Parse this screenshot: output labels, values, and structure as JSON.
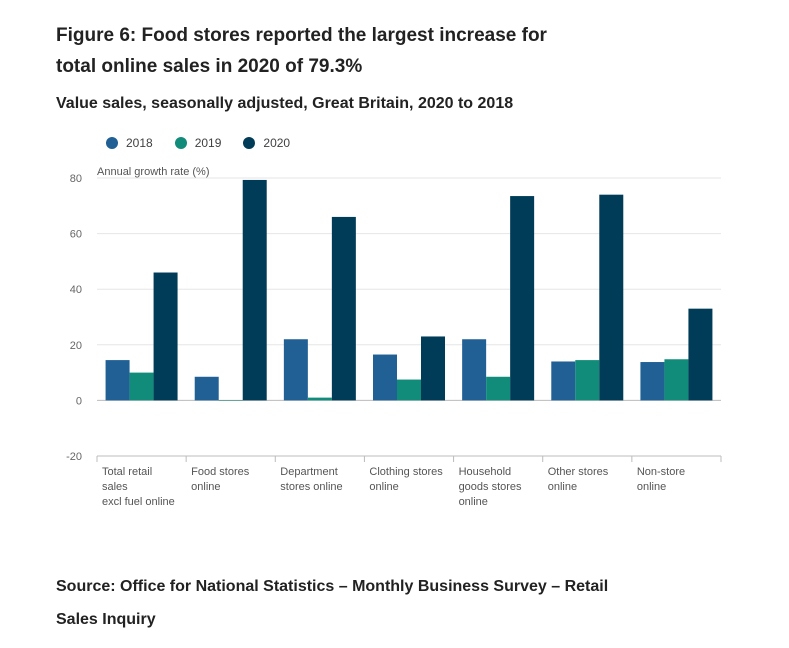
{
  "figure": {
    "title": "Figure 6: Food stores reported the largest increase for total online sales in 2020 of 79.3%",
    "subtitle": "Value sales, seasonally adjusted, Great Britain, 2020 to 2018",
    "source": "Source: Office for National Statistics – Monthly Business Survey – Retail Sales Inquiry"
  },
  "chart_data": {
    "type": "bar",
    "ylabel": "Annual growth rate (%)",
    "ylim": [
      -20,
      80
    ],
    "yticks": [
      80,
      60,
      40,
      20,
      0,
      -20
    ],
    "grid": true,
    "legend_position": "top-left",
    "categories": [
      [
        "Total retail",
        "sales",
        "excl fuel online"
      ],
      [
        "Food stores",
        "online"
      ],
      [
        "Department",
        "stores online"
      ],
      [
        "Clothing stores",
        "online"
      ],
      [
        "Household",
        "goods stores",
        "online"
      ],
      [
        "Other stores",
        "online"
      ],
      [
        "Non-store",
        "online"
      ]
    ],
    "series": [
      {
        "name": "2018",
        "color": "#206095",
        "values": [
          14.5,
          8.5,
          22.0,
          16.5,
          22.0,
          14.0,
          13.8
        ]
      },
      {
        "name": "2019",
        "color": "#118c7b",
        "values": [
          10.0,
          0.0,
          1.0,
          7.5,
          8.5,
          14.5,
          14.8
        ]
      },
      {
        "name": "2020",
        "color": "#003c57",
        "values": [
          46.0,
          79.3,
          66.0,
          23.0,
          73.5,
          74.0,
          33.0
        ]
      }
    ]
  }
}
